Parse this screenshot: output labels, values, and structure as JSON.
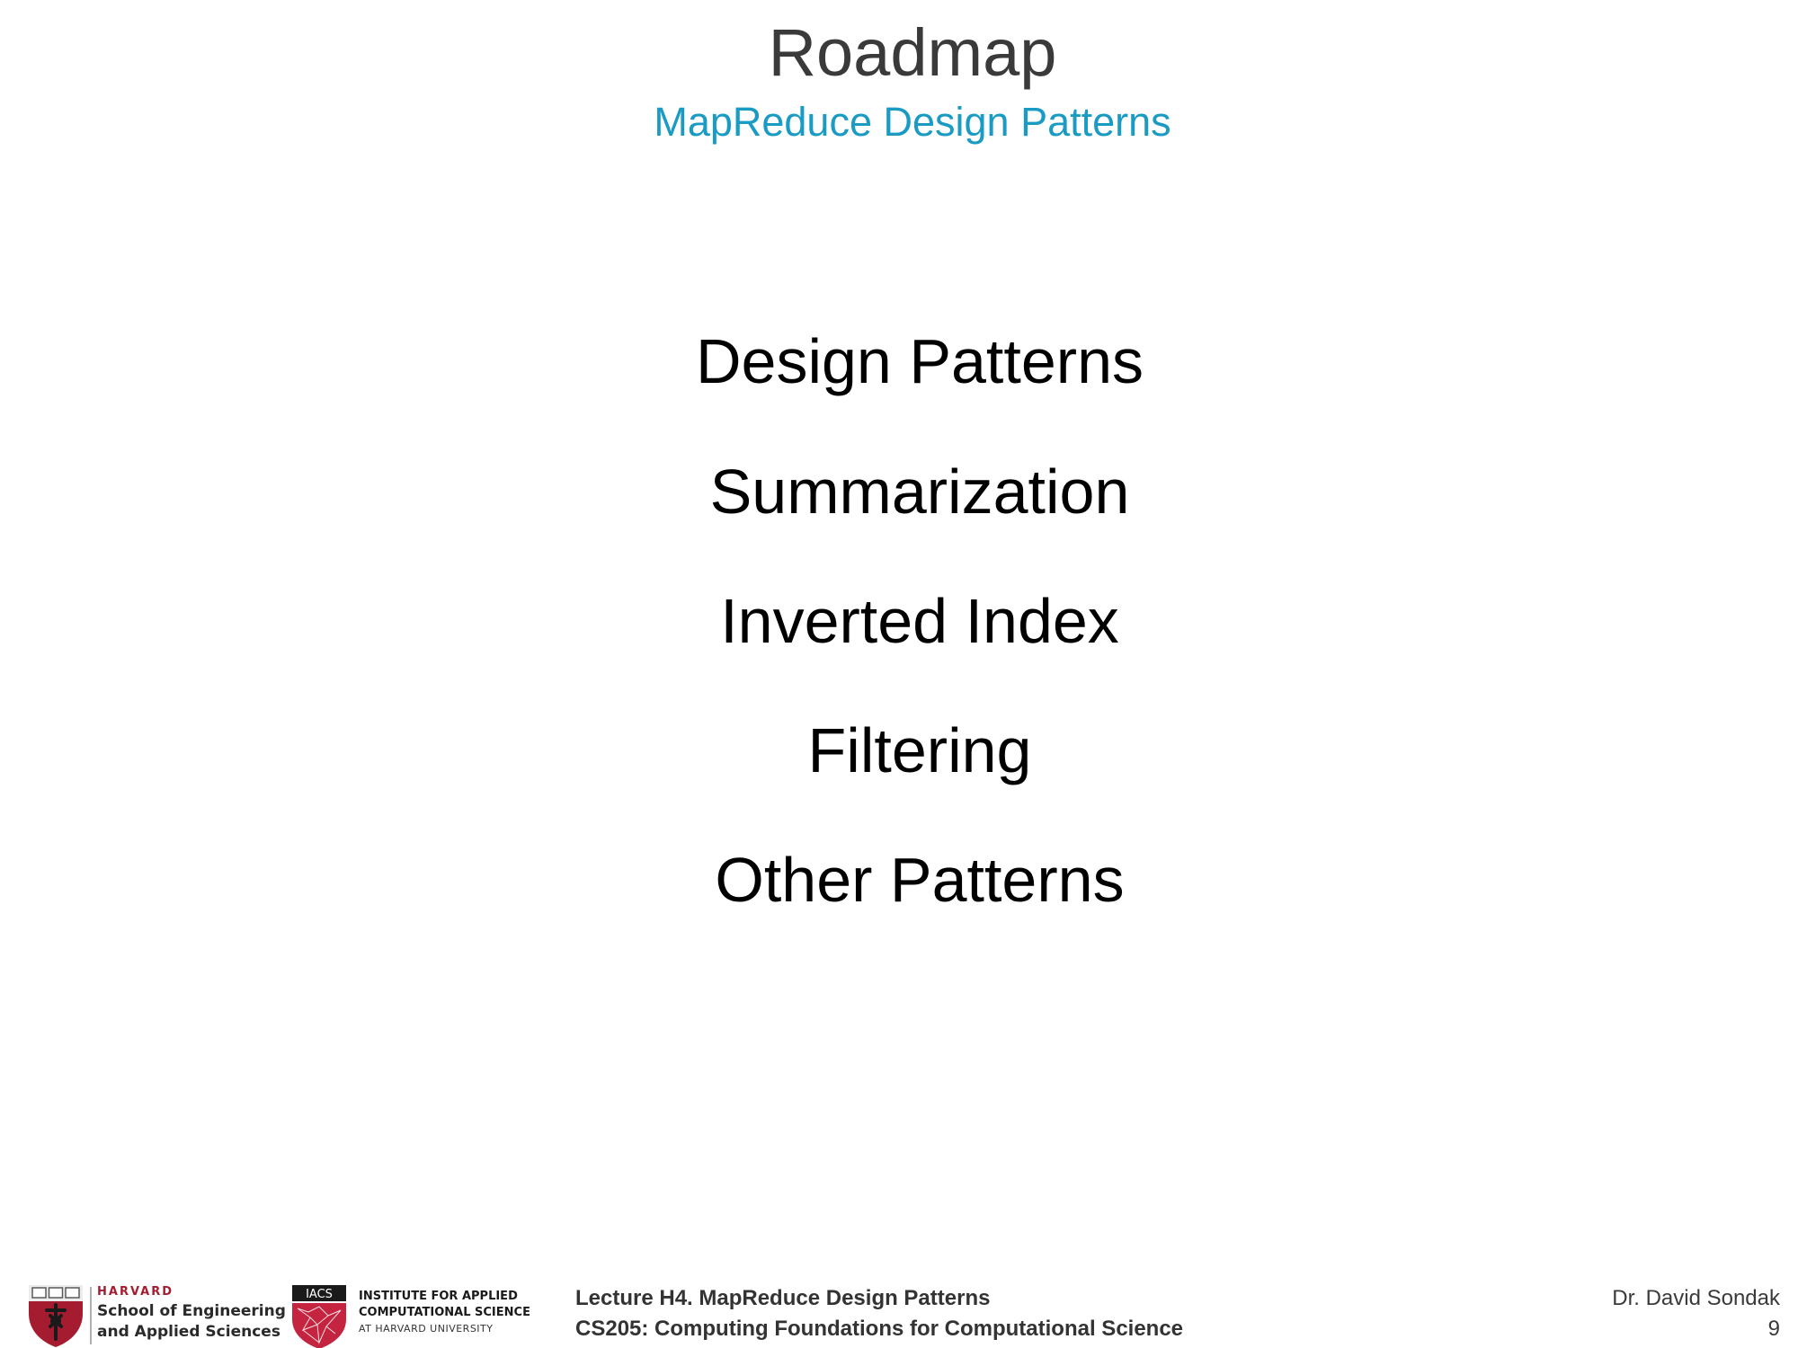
{
  "slide": {
    "title": "Roadmap",
    "subtitle": "MapReduce Design Patterns",
    "items": [
      "Design Patterns",
      "Summarization",
      "Inverted Index",
      "Filtering",
      "Other Patterns"
    ]
  },
  "footer": {
    "seas_logo": {
      "harvard": "HARVARD",
      "line1": "School of Engineering",
      "line2": "and Applied Sciences"
    },
    "iacs_logo": {
      "badge": "IACS",
      "line1": "INSTITUTE FOR APPLIED",
      "line2": "COMPUTATIONAL SCIENCE",
      "line3": "AT HARVARD UNIVERSITY"
    },
    "lecture": "Lecture H4. MapReduce Design Patterns",
    "course": "CS205: Computing Foundations for Computational Science",
    "author": "Dr. David Sondak",
    "page_number": "9"
  },
  "colors": {
    "title": "#3a3a3a",
    "subtitle": "#1a9bc4",
    "harvard_crimson": "#a51c30"
  }
}
